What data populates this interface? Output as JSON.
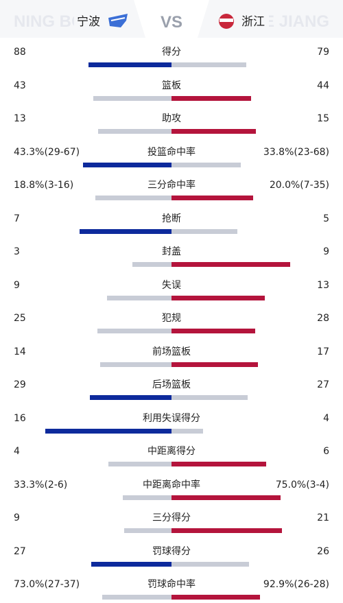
{
  "header": {
    "home_bg": "NING BO",
    "home": "宁波",
    "vs": "VS",
    "away": "浙江",
    "away_bg": "ZHE JIANG"
  },
  "rows": [
    {
      "label": "得分",
      "home": 88,
      "away": 79
    },
    {
      "label": "篮板",
      "home": 43,
      "away": 44
    },
    {
      "label": "助攻",
      "home": 13,
      "away": 15
    },
    {
      "label": "投篮命中率",
      "home": {
        "value": 43.3,
        "label": "43.3%(29-67)"
      },
      "away": {
        "value": 33.8,
        "label": "33.8%(23-68)"
      }
    },
    {
      "label": "三分命中率",
      "home": {
        "value": 18.8,
        "label": "18.8%(3-16)"
      },
      "away": {
        "value": 20.0,
        "label": "20.0%(7-35)"
      }
    },
    {
      "label": "抢断",
      "home": 7,
      "away": 5
    },
    {
      "label": "封盖",
      "home": 3,
      "away": 9
    },
    {
      "label": "失误",
      "home": 9,
      "away": 13
    },
    {
      "label": "犯规",
      "home": 25,
      "away": 28
    },
    {
      "label": "前场篮板",
      "home": 14,
      "away": 17
    },
    {
      "label": "后场篮板",
      "home": 29,
      "away": 27
    },
    {
      "label": "利用失误得分",
      "home": 16,
      "away": 4
    },
    {
      "label": "中距离得分",
      "home": 4,
      "away": 6
    },
    {
      "label": "中距离命中率",
      "home": {
        "value": 33.3,
        "label": "33.3%(2-6)"
      },
      "away": {
        "value": 75.0,
        "label": "75.0%(3-4)"
      }
    },
    {
      "label": "三分得分",
      "home": 9,
      "away": 21
    },
    {
      "label": "罚球得分",
      "home": 27,
      "away": 26
    },
    {
      "label": "罚球命中率",
      "home": {
        "value": 73.0,
        "label": "73.0%(27-37)"
      },
      "away": {
        "value": 92.9,
        "label": "92.9%(26-28)"
      }
    }
  ]
}
